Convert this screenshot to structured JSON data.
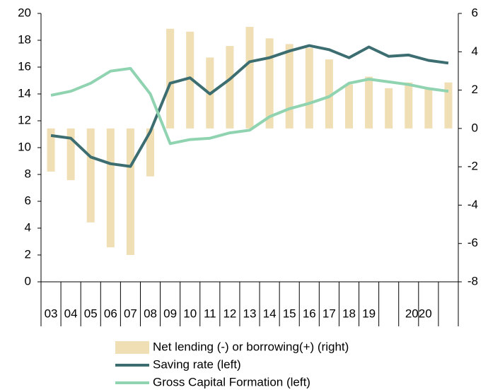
{
  "chart_data": {
    "type": "bar-line",
    "categories": [
      "03",
      "04",
      "05",
      "06",
      "07",
      "08",
      "09",
      "10",
      "11",
      "12",
      "13",
      "14",
      "15",
      "16",
      "17",
      "18",
      "19",
      null,
      "2020",
      null,
      null
    ],
    "series": [
      {
        "name": "Net lending (-) or borrowing(+) (right)",
        "type": "bar",
        "axis": "y2",
        "color": "#f0deb4",
        "values": [
          -2.25,
          -2.7,
          -4.9,
          -6.2,
          -6.6,
          -2.5,
          5.2,
          5.05,
          3.7,
          4.3,
          5.3,
          4.7,
          4.4,
          4.2,
          3.6,
          2.3,
          2.7,
          2.1,
          2.4,
          2.1,
          2.4
        ]
      },
      {
        "name": "Saving rate (left)",
        "type": "line",
        "color": "#3c6e71",
        "values": [
          10.9,
          10.7,
          9.3,
          8.8,
          8.6,
          11.2,
          14.8,
          15.2,
          14.0,
          15.1,
          16.4,
          16.7,
          17.2,
          17.6,
          17.3,
          16.7,
          17.5,
          16.8,
          16.9,
          16.5,
          16.3
        ]
      },
      {
        "name": "Gross Capital Formation (left)",
        "type": "line",
        "color": "#8fd3b0",
        "values": [
          13.9,
          14.2,
          14.8,
          15.7,
          15.9,
          14.0,
          10.3,
          10.6,
          10.7,
          11.1,
          11.3,
          12.3,
          12.9,
          13.3,
          13.8,
          14.8,
          15.1,
          14.9,
          14.7,
          14.4,
          14.2
        ]
      }
    ],
    "ylim": [
      0,
      20
    ],
    "yticks": [
      0,
      2,
      4,
      6,
      8,
      10,
      12,
      14,
      16,
      18,
      20
    ],
    "y2lim": [
      -8,
      6
    ],
    "y2ticks": [
      -8,
      -6,
      -4,
      -2,
      0,
      2,
      4,
      6
    ]
  }
}
